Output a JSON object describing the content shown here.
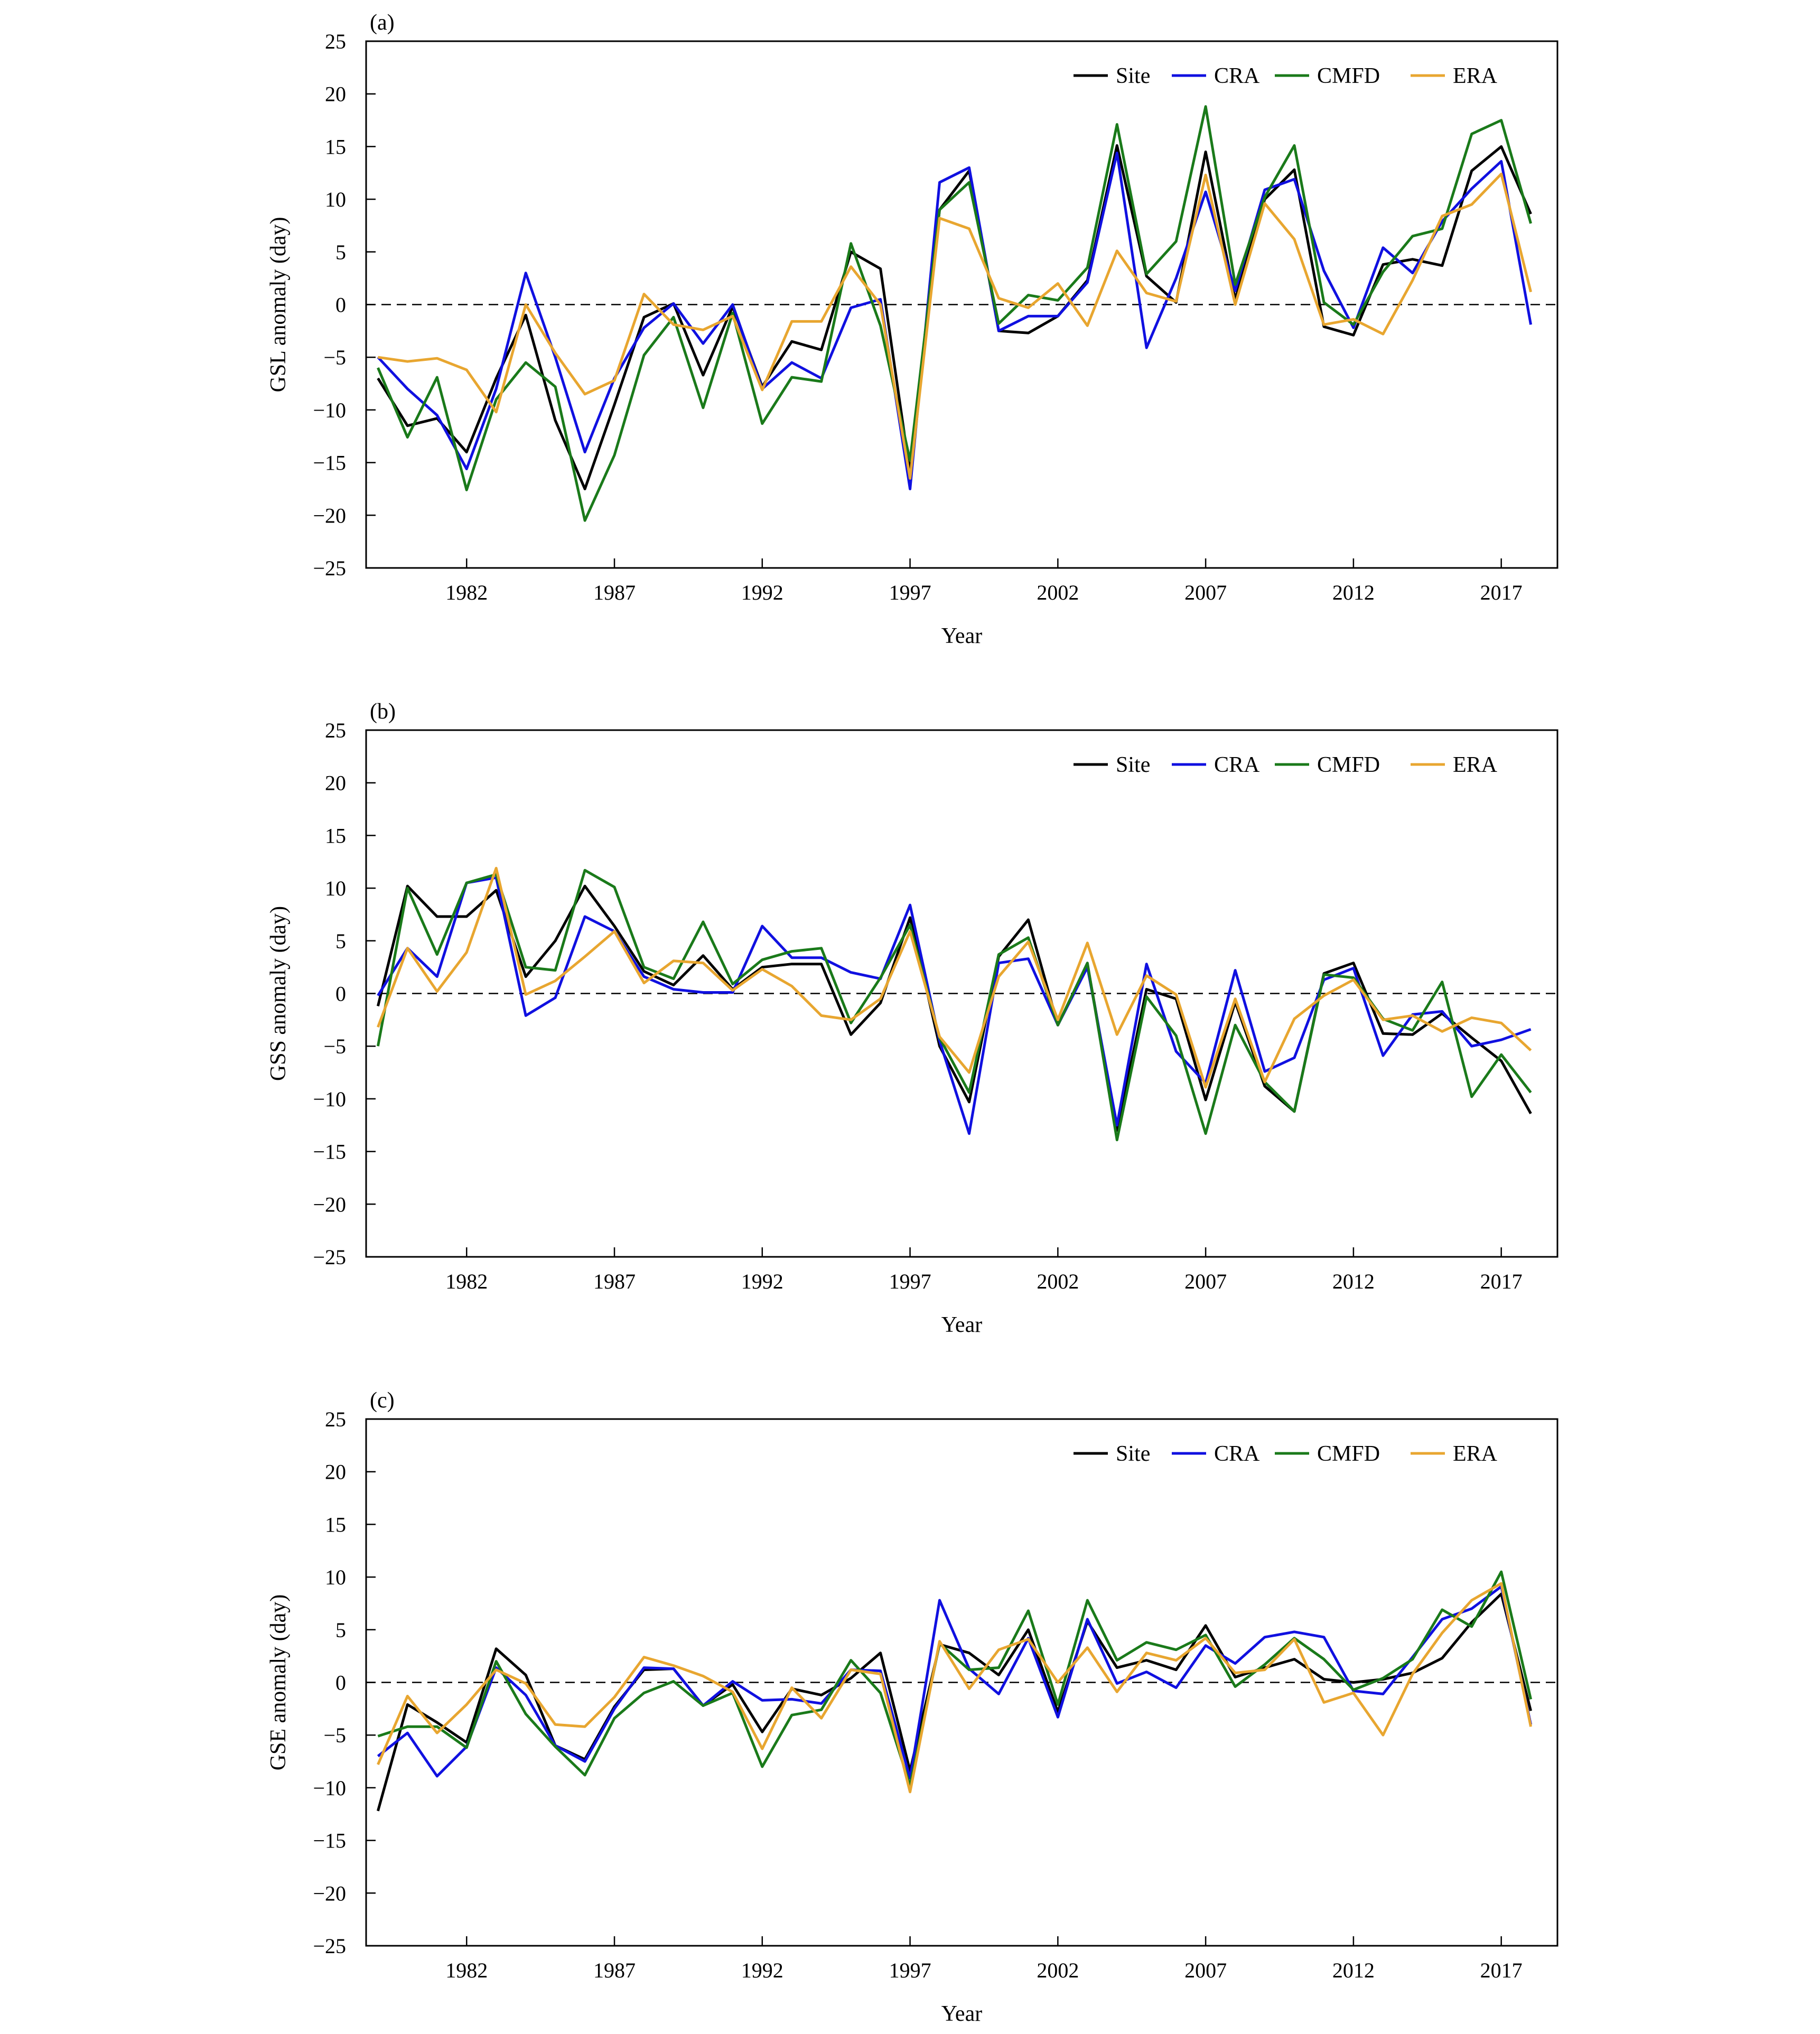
{
  "chart_data": [
    {
      "type": "line",
      "panel_label": "(a)",
      "xlabel": "Year",
      "ylabel": "GSL anomaly (day)",
      "ylim": [
        -25,
        25
      ],
      "yticks": [
        25,
        20,
        15,
        10,
        5,
        0,
        -5,
        -10,
        -15,
        -20,
        -25
      ],
      "xlim": [
        1978.6,
        2018.9
      ],
      "xticks": [
        1982,
        1987,
        1992,
        1997,
        2002,
        2007,
        2012,
        2017
      ],
      "reference_line": 0,
      "legend_position": "top-right",
      "x": [
        1979,
        1980,
        1981,
        1982,
        1983,
        1984,
        1985,
        1986,
        1987,
        1988,
        1989,
        1990,
        1991,
        1992,
        1993,
        1994,
        1995,
        1996,
        1997,
        1998,
        1999,
        2000,
        2001,
        2002,
        2003,
        2004,
        2005,
        2006,
        2007,
        2008,
        2009,
        2010,
        2011,
        2012,
        2013,
        2014,
        2015,
        2016,
        2017,
        2018
      ],
      "series": [
        {
          "name": "Site",
          "color": "#000000",
          "values": [
            -7,
            -11.5,
            -10.8,
            -14,
            -7,
            -1,
            -11,
            -17.5,
            -9.5,
            -1.2,
            0.1,
            -6.7,
            -0.2,
            -7.8,
            -3.5,
            -4.3,
            5,
            3.4,
            -16,
            9,
            12.7,
            -2.5,
            -2.7,
            -1.1,
            2.3,
            15.1,
            2.7,
            0.2,
            14.5,
            0.5,
            10,
            12.8,
            -2.1,
            -2.9,
            3.8,
            4.3,
            3.7,
            12.7,
            15,
            8.6
          ]
        },
        {
          "name": "CRA",
          "color": "#1010e0",
          "values": [
            -5,
            -8,
            -10.5,
            -15.6,
            -8,
            3,
            -5,
            -14,
            -7,
            -2.2,
            0.1,
            -3.7,
            0,
            -8,
            -5.5,
            -7,
            -0.3,
            0.5,
            -17.5,
            11.6,
            13,
            -2.5,
            -1.1,
            -1.1,
            2.1,
            14.4,
            -4.1,
            2.5,
            10.7,
            1.3,
            10.9,
            11.9,
            3.2,
            -2.2,
            5.4,
            3,
            7.9,
            11,
            13.6,
            -1.9
          ]
        },
        {
          "name": "CMFD",
          "color": "#1a7a1a",
          "values": [
            -6,
            -12.6,
            -6.9,
            -17.6,
            -9,
            -5.5,
            -7.8,
            -20.5,
            -14.3,
            -4.8,
            -1.2,
            -9.8,
            -0.8,
            -11.3,
            -6.9,
            -7.3,
            5.8,
            -2,
            -14.8,
            9,
            11.6,
            -1.8,
            0.9,
            0.4,
            3.5,
            17.1,
            2.9,
            6,
            18.8,
            1.9,
            10.2,
            15.1,
            0.2,
            -1.9,
            3.1,
            6.5,
            7.2,
            16.2,
            17.5,
            7.7
          ]
        },
        {
          "name": "ERA",
          "color": "#e8a630",
          "values": [
            -5,
            -5.4,
            -5.1,
            -6.2,
            -10.2,
            0,
            -4.6,
            -8.5,
            -7.2,
            1,
            -1.9,
            -2.4,
            -1.1,
            -8.1,
            -1.6,
            -1.6,
            3.6,
            0,
            -16.5,
            8.2,
            7.2,
            0.6,
            -0.3,
            2,
            -2,
            5.1,
            1.1,
            0.3,
            12.3,
            0,
            9.6,
            6.2,
            -1.9,
            -1.4,
            -2.8,
            2.3,
            8.4,
            9.5,
            12.4,
            1.2
          ]
        }
      ]
    },
    {
      "type": "line",
      "panel_label": "(b)",
      "xlabel": "Year",
      "ylabel": "GSS anomaly (day)",
      "ylim": [
        -25,
        25
      ],
      "yticks": [
        25,
        20,
        15,
        10,
        5,
        0,
        -5,
        -10,
        -15,
        -20,
        -25
      ],
      "xlim": [
        1978.6,
        2018.9
      ],
      "xticks": [
        1982,
        1987,
        1992,
        1997,
        2002,
        2007,
        2012,
        2017
      ],
      "reference_line": 0,
      "legend_position": "top-right",
      "x": [
        1979,
        1980,
        1981,
        1982,
        1983,
        1984,
        1985,
        1986,
        1987,
        1988,
        1989,
        1990,
        1991,
        1992,
        1993,
        1994,
        1995,
        1996,
        1997,
        1998,
        1999,
        2000,
        2001,
        2002,
        2003,
        2004,
        2005,
        2006,
        2007,
        2008,
        2009,
        2010,
        2011,
        2012,
        2013,
        2014,
        2015,
        2016,
        2017,
        2018
      ],
      "series": [
        {
          "name": "Site",
          "color": "#000000",
          "values": [
            -1.2,
            10.2,
            7.3,
            7.3,
            9.8,
            1.6,
            5,
            10.2,
            6.4,
            2.1,
            0.8,
            3.6,
            0.4,
            2.5,
            2.8,
            2.8,
            -3.9,
            -0.9,
            7.2,
            -5,
            -10.3,
            3.5,
            7,
            -3,
            2.8,
            -13,
            0.4,
            -0.5,
            -10.1,
            -0.8,
            -8.8,
            -11.2,
            1.9,
            2.9,
            -3.8,
            -3.9,
            -1.9,
            -4.2,
            -6.4,
            -11.4
          ]
        },
        {
          "name": "CRA",
          "color": "#1010e0",
          "values": [
            -0.2,
            4.3,
            1.6,
            10.5,
            11,
            -2.1,
            -0.4,
            7.3,
            5.9,
            1.6,
            0.4,
            0.1,
            0.1,
            6.4,
            3.4,
            3.4,
            2,
            1.4,
            8.4,
            -4.5,
            -13.3,
            2.9,
            3.3,
            -3,
            2.5,
            -12.5,
            2.8,
            -5.5,
            -8.5,
            2.2,
            -7.4,
            -6.1,
            1.3,
            2.4,
            -5.9,
            -2,
            -1.7,
            -5,
            -4.4,
            -3.4
          ]
        },
        {
          "name": "CMFD",
          "color": "#1a7a1a",
          "values": [
            -5,
            10,
            3.7,
            10.5,
            11.3,
            2.5,
            2.2,
            11.7,
            10.1,
            2.5,
            1.4,
            6.8,
            0.9,
            3.2,
            4,
            4.3,
            -2.8,
            1.5,
            6.5,
            -4.2,
            -9.4,
            3.7,
            5.3,
            -3,
            2.9,
            -13.9,
            -0.3,
            -4,
            -13.3,
            -3,
            -8.4,
            -11.2,
            1.8,
            1.5,
            -2.4,
            -3.5,
            1.1,
            -9.8,
            -5.8,
            -9.4
          ]
        },
        {
          "name": "ERA",
          "color": "#e8a630",
          "values": [
            -3.2,
            4.3,
            0.2,
            3.9,
            11.9,
            -0.1,
            1.2,
            3.5,
            5.9,
            1,
            3.1,
            2.9,
            0.3,
            2.3,
            0.7,
            -2.1,
            -2.5,
            -0.5,
            5.9,
            -4.1,
            -7.5,
            1.6,
            4.9,
            -2.5,
            4.8,
            -3.9,
            1.7,
            -0.1,
            -8.9,
            -0.5,
            -8.4,
            -2.4,
            -0.2,
            1.3,
            -2.5,
            -2.1,
            -3.6,
            -2.3,
            -2.8,
            -5.4
          ]
        }
      ]
    },
    {
      "type": "line",
      "panel_label": "(c)",
      "xlabel": "Year",
      "ylabel": "GSE anomaly (day)",
      "ylim": [
        -25,
        25
      ],
      "yticks": [
        25,
        20,
        15,
        10,
        5,
        0,
        -5,
        -10,
        -15,
        -20,
        -25
      ],
      "xlim": [
        1978.6,
        2018.9
      ],
      "xticks": [
        1982,
        1987,
        1992,
        1997,
        2002,
        2007,
        2012,
        2017
      ],
      "reference_line": 0,
      "legend_position": "top-right",
      "x": [
        1979,
        1980,
        1981,
        1982,
        1983,
        1984,
        1985,
        1986,
        1987,
        1988,
        1989,
        1990,
        1991,
        1992,
        1993,
        1994,
        1995,
        1996,
        1997,
        1998,
        1999,
        2000,
        2001,
        2002,
        2003,
        2004,
        2005,
        2006,
        2007,
        2008,
        2009,
        2010,
        2011,
        2012,
        2013,
        2014,
        2015,
        2016,
        2017,
        2018
      ],
      "series": [
        {
          "name": "Site",
          "color": "#000000",
          "values": [
            -12.2,
            -2.1,
            -3.8,
            -5.7,
            3.2,
            0.7,
            -6,
            -7.3,
            -2.3,
            1.2,
            1.3,
            -2.2,
            -0.2,
            -4.7,
            -0.6,
            -1.2,
            0.4,
            2.8,
            -8.4,
            3.6,
            2.8,
            0.7,
            5,
            -2.8,
            5.8,
            1.4,
            2.1,
            1.2,
            5.4,
            0.5,
            1.4,
            2.2,
            0.3,
            0,
            0.3,
            0.9,
            2.3,
            5.7,
            8.4,
            -2.7
          ]
        },
        {
          "name": "CRA",
          "color": "#1010e0",
          "values": [
            -7,
            -4.8,
            -8.9,
            -6.1,
            1.4,
            -1.2,
            -6,
            -7.5,
            -2.5,
            1.4,
            1.3,
            -2.2,
            0.1,
            -1.7,
            -1.6,
            -2,
            1.2,
            1.1,
            -9.1,
            7.8,
            1.3,
            -1.1,
            4.2,
            -3.3,
            6,
            -0.1,
            1,
            -0.5,
            3.5,
            1.8,
            4.3,
            4.8,
            4.3,
            -0.8,
            -1.1,
            2.4,
            6,
            7,
            9.1,
            -4
          ]
        },
        {
          "name": "CMFD",
          "color": "#1a7a1a",
          "values": [
            -5.1,
            -4.2,
            -4.2,
            -6.2,
            2,
            -3,
            -6.1,
            -8.8,
            -3.4,
            -1,
            0.1,
            -2.2,
            -1,
            -8,
            -3.1,
            -2.6,
            2.1,
            -1,
            -9.8,
            3.7,
            1.2,
            1.4,
            6.8,
            -2.1,
            7.8,
            2.1,
            3.8,
            3.1,
            4.5,
            -0.4,
            1.7,
            4.2,
            2.2,
            -0.7,
            0.4,
            2.2,
            6.9,
            5.3,
            10.5,
            -1.6
          ]
        },
        {
          "name": "ERA",
          "color": "#e8a630",
          "values": [
            -7.8,
            -1.3,
            -4.8,
            -2.1,
            1.2,
            -0.1,
            -4,
            -4.2,
            -1.4,
            2.4,
            1.6,
            0.6,
            -0.9,
            -6.3,
            -0.5,
            -3.4,
            1.2,
            0.8,
            -10.4,
            3.9,
            -0.6,
            3.1,
            4.1,
            0,
            3.3,
            -0.9,
            2.8,
            2.1,
            4.2,
            0.9,
            1.2,
            4.1,
            -1.9,
            -1,
            -5,
            0.8,
            4.7,
            7.8,
            9.4,
            -4.2
          ]
        }
      ]
    }
  ]
}
